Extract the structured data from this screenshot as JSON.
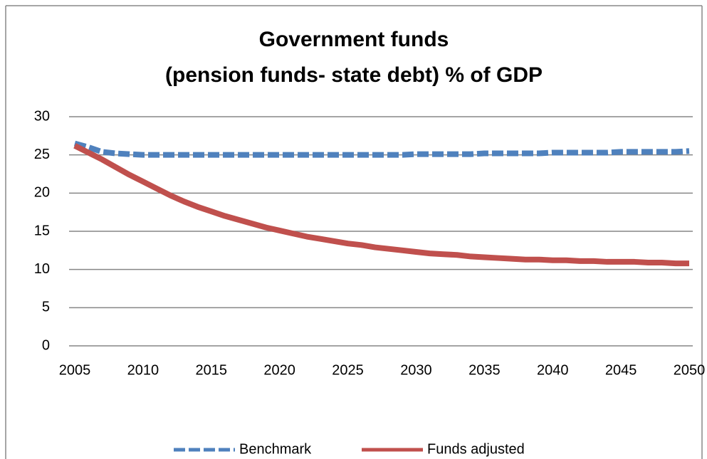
{
  "chart_data": {
    "type": "line",
    "title": [
      "Government funds",
      "(pension funds- state debt) % of GDP"
    ],
    "x": [
      2005,
      2006,
      2007,
      2008,
      2009,
      2010,
      2011,
      2012,
      2013,
      2014,
      2015,
      2016,
      2017,
      2018,
      2019,
      2020,
      2021,
      2022,
      2023,
      2024,
      2025,
      2026,
      2027,
      2028,
      2029,
      2030,
      2031,
      2032,
      2033,
      2034,
      2035,
      2036,
      2037,
      2038,
      2039,
      2040,
      2041,
      2042,
      2043,
      2044,
      2045,
      2046,
      2047,
      2048,
      2049,
      2050
    ],
    "series": [
      {
        "name": "Benchmark",
        "color": "#4f81bd",
        "dashed": true,
        "values": [
          26.5,
          26.0,
          25.4,
          25.2,
          25.1,
          25.0,
          25.0,
          25.0,
          25.0,
          25.0,
          25.0,
          25.0,
          25.0,
          25.0,
          25.0,
          25.0,
          25.0,
          25.0,
          25.0,
          25.0,
          25.0,
          25.0,
          25.0,
          25.0,
          25.0,
          25.1,
          25.1,
          25.1,
          25.1,
          25.1,
          25.2,
          25.2,
          25.2,
          25.2,
          25.2,
          25.3,
          25.3,
          25.3,
          25.3,
          25.3,
          25.4,
          25.4,
          25.4,
          25.4,
          25.4,
          25.5
        ]
      },
      {
        "name": "Funds adjusted",
        "color": "#c0504d",
        "dashed": false,
        "values": [
          26.2,
          25.3,
          24.4,
          23.4,
          22.4,
          21.5,
          20.6,
          19.7,
          18.9,
          18.2,
          17.6,
          17.0,
          16.5,
          16.0,
          15.5,
          15.1,
          14.7,
          14.3,
          14.0,
          13.7,
          13.4,
          13.2,
          12.9,
          12.7,
          12.5,
          12.3,
          12.1,
          12.0,
          11.9,
          11.7,
          11.6,
          11.5,
          11.4,
          11.3,
          11.3,
          11.2,
          11.2,
          11.1,
          11.1,
          11.0,
          11.0,
          11.0,
          10.9,
          10.9,
          10.8,
          10.8
        ]
      }
    ],
    "xlim": [
      2005,
      2050
    ],
    "xticks": [
      2005,
      2010,
      2015,
      2020,
      2025,
      2030,
      2035,
      2040,
      2045,
      2050
    ],
    "ylim": [
      0,
      30
    ],
    "yticks": [
      0,
      5,
      10,
      15,
      20,
      25,
      30
    ],
    "grid": true,
    "legend": "bottom"
  }
}
